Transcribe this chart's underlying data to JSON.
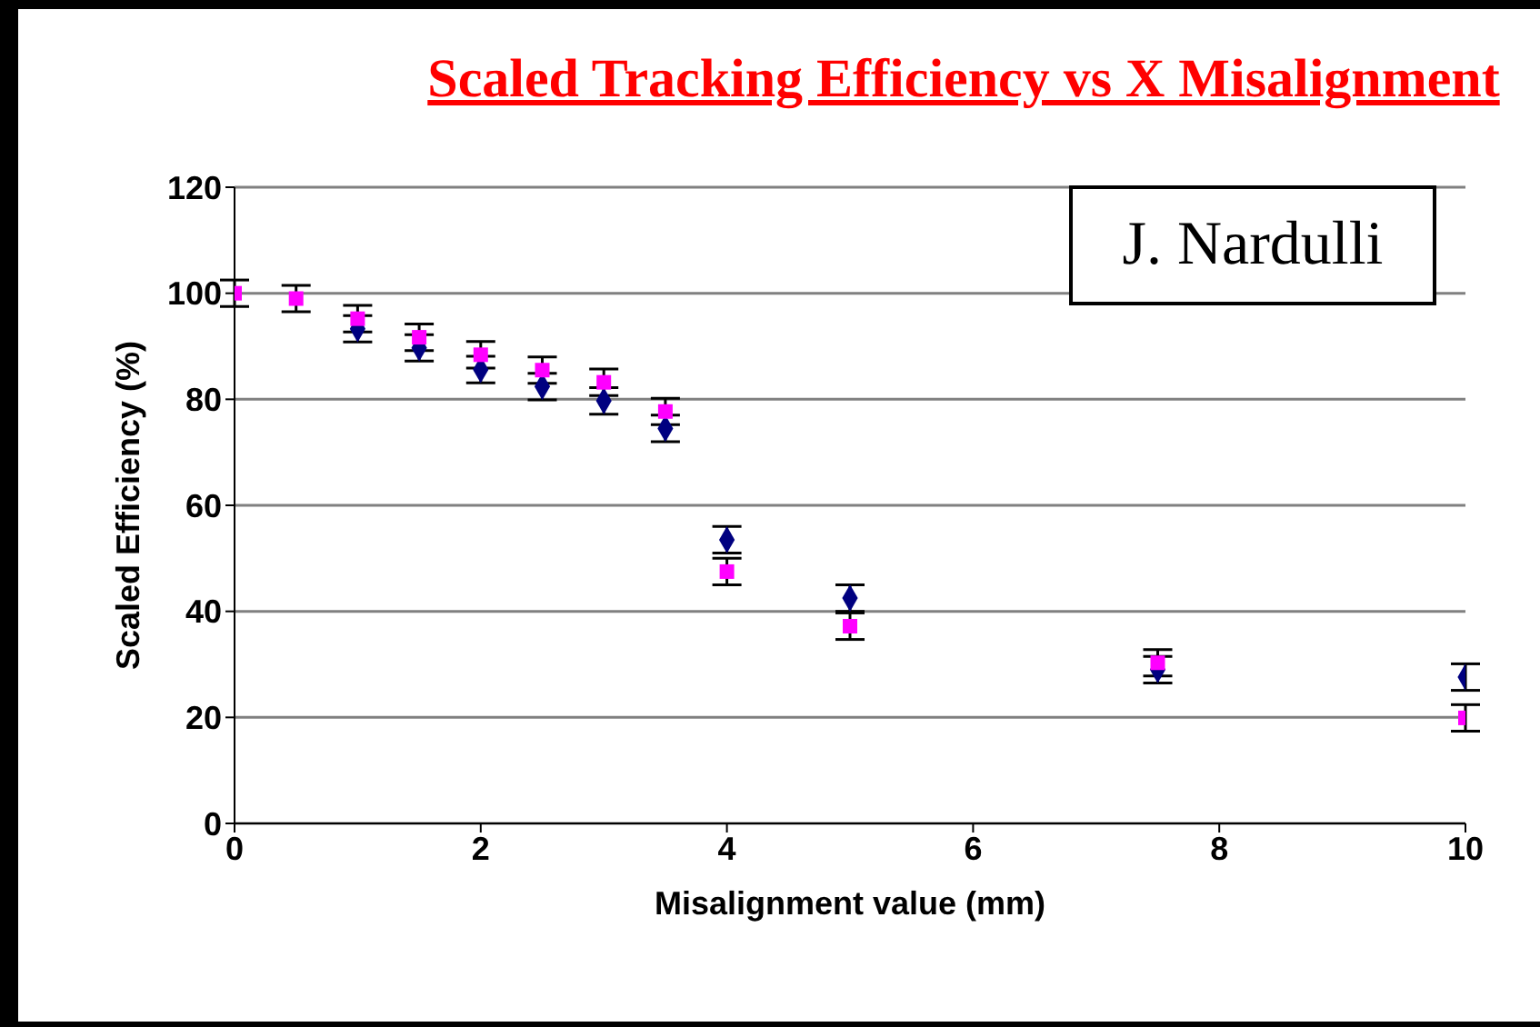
{
  "chart_data": {
    "type": "scatter",
    "title": "Scaled Tracking Efficiency vs X Misalignment",
    "xlabel": "Misalignment value (mm)",
    "ylabel": "Scaled Efficiency (%)",
    "annotations": [
      "J. Nardulli"
    ],
    "x": [
      0,
      0.5,
      1,
      1.5,
      2,
      2.5,
      3,
      3.5,
      4,
      5,
      7.5,
      10
    ],
    "series": [
      {
        "color": "#000080",
        "marker": "diamond",
        "values": [
          null,
          null,
          93.3,
          89.7,
          85.6,
          82.4,
          79.7,
          74.5,
          53.5,
          42.5,
          29,
          27.6
        ],
        "errors": [
          null,
          null,
          2.5,
          2.5,
          2.5,
          2.5,
          2.5,
          2.5,
          2.5,
          2.5,
          2.5,
          2.5
        ]
      },
      {
        "color": "#ff00ff",
        "marker": "square",
        "values": [
          100,
          99,
          95.2,
          91.7,
          88.4,
          85.5,
          83.2,
          77.7,
          47.5,
          37.2,
          30.3,
          19.9
        ],
        "errors": [
          2.5,
          2.5,
          2.5,
          2.5,
          2.5,
          2.5,
          2.5,
          2.5,
          2.5,
          2.5,
          2.5,
          2.5
        ]
      }
    ],
    "xlim": [
      0,
      10
    ],
    "xticks": [
      0,
      2,
      4,
      6,
      8,
      10
    ],
    "ylim": [
      0,
      120
    ],
    "yticks": [
      0,
      20,
      40,
      60,
      80,
      100,
      120
    ],
    "grid": "y",
    "legend": false
  }
}
